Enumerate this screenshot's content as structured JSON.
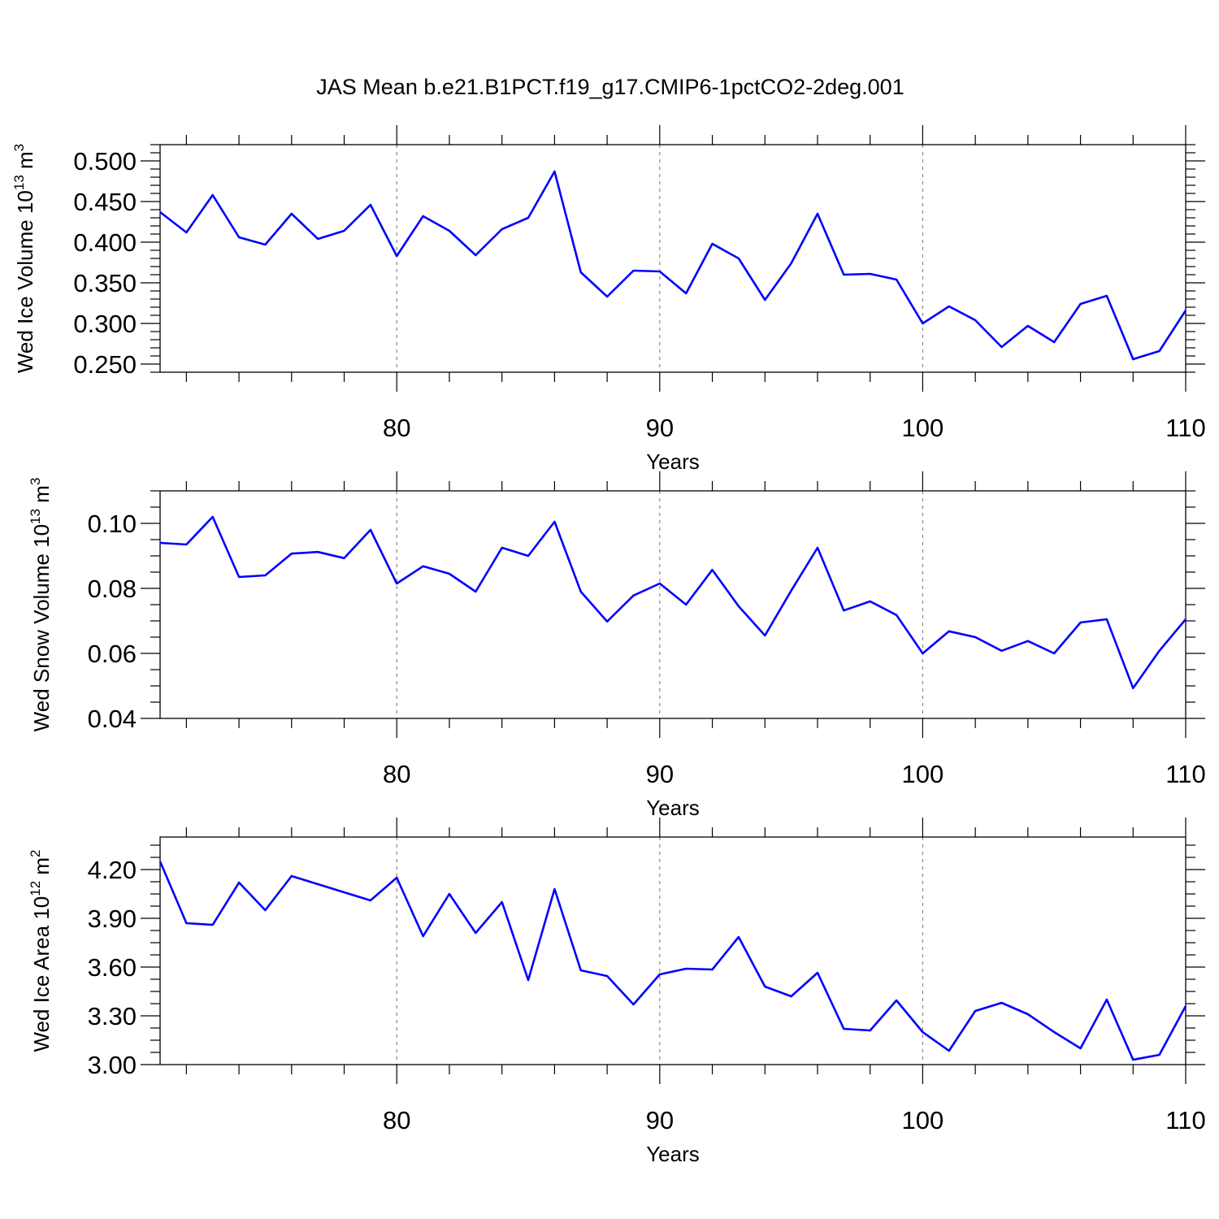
{
  "title": "JAS Mean b.e21.B1PCT.f19_g17.CMIP6-1pctCO2-2deg.001",
  "colors": {
    "line": "#0000ff",
    "axis": "#000000",
    "grid": "#888888"
  },
  "chart_data": [
    {
      "type": "line",
      "xlabel": "Years",
      "ylabel": {
        "text": "Wed Ice Volume 10",
        "exp": "13",
        "unit": " m",
        "unit_exp": "3"
      },
      "xlim": [
        71,
        110
      ],
      "ylim": [
        0.24,
        0.52
      ],
      "xticks": [
        80,
        90,
        100,
        110
      ],
      "xtick_labels": [
        "80",
        "90",
        "100",
        "110"
      ],
      "yticks": [
        0.25,
        0.3,
        0.35,
        0.4,
        0.45,
        0.5
      ],
      "ytick_labels": [
        "0.250",
        "0.300",
        "0.350",
        "0.400",
        "0.450",
        "0.500"
      ],
      "yminor_step": 0.01,
      "grid_x": [
        80,
        90,
        100
      ],
      "x": [
        71,
        72,
        73,
        74,
        75,
        76,
        77,
        78,
        79,
        80,
        81,
        82,
        83,
        84,
        85,
        86,
        87,
        88,
        89,
        90,
        91,
        92,
        93,
        94,
        95,
        96,
        97,
        98,
        99,
        100,
        101,
        102,
        103,
        104,
        105,
        106,
        107,
        108,
        109,
        110
      ],
      "values": [
        0.437,
        0.412,
        0.458,
        0.406,
        0.397,
        0.435,
        0.404,
        0.414,
        0.446,
        0.383,
        0.432,
        0.414,
        0.384,
        0.416,
        0.43,
        0.487,
        0.363,
        0.333,
        0.365,
        0.364,
        0.337,
        0.398,
        0.38,
        0.329,
        0.374,
        0.435,
        0.36,
        0.361,
        0.354,
        0.3,
        0.321,
        0.304,
        0.271,
        0.297,
        0.277,
        0.324,
        0.334,
        0.256,
        0.266,
        0.316
      ]
    },
    {
      "type": "line",
      "xlabel": "Years",
      "ylabel": {
        "text": "Wed Snow Volume 10",
        "exp": "13",
        "unit": " m",
        "unit_exp": "3"
      },
      "xlim": [
        71,
        110
      ],
      "ylim": [
        0.04,
        0.11
      ],
      "xticks": [
        80,
        90,
        100,
        110
      ],
      "xtick_labels": [
        "80",
        "90",
        "100",
        "110"
      ],
      "yticks": [
        0.04,
        0.06,
        0.08,
        0.1
      ],
      "ytick_labels": [
        "0.04",
        "0.06",
        "0.08",
        "0.10"
      ],
      "yminor_step": 0.005,
      "grid_x": [
        80,
        90,
        100
      ],
      "x": [
        71,
        72,
        73,
        74,
        75,
        76,
        77,
        78,
        79,
        80,
        81,
        82,
        83,
        84,
        85,
        86,
        87,
        88,
        89,
        90,
        91,
        92,
        93,
        94,
        95,
        96,
        97,
        98,
        99,
        100,
        101,
        102,
        103,
        104,
        105,
        106,
        107,
        108,
        109,
        110
      ],
      "values": [
        0.094,
        0.0935,
        0.102,
        0.0835,
        0.084,
        0.0907,
        0.0912,
        0.0893,
        0.098,
        0.0815,
        0.0868,
        0.0845,
        0.079,
        0.0925,
        0.09,
        0.1005,
        0.079,
        0.0698,
        0.0778,
        0.0815,
        0.075,
        0.0857,
        0.0745,
        0.0655,
        0.0793,
        0.0925,
        0.0732,
        0.076,
        0.0718,
        0.06,
        0.0668,
        0.065,
        0.0608,
        0.0638,
        0.06,
        0.0695,
        0.0705,
        0.0493,
        0.0608,
        0.0705
      ]
    },
    {
      "type": "line",
      "xlabel": "Years",
      "ylabel": {
        "text": "Wed Ice Area 10",
        "exp": "12",
        "unit": " m",
        "unit_exp": "2"
      },
      "xlim": [
        71,
        110
      ],
      "ylim": [
        3.0,
        4.4
      ],
      "xticks": [
        80,
        90,
        100,
        110
      ],
      "xtick_labels": [
        "80",
        "90",
        "100",
        "110"
      ],
      "yticks": [
        3.0,
        3.3,
        3.6,
        3.9,
        4.2
      ],
      "ytick_labels": [
        "3.00",
        "3.30",
        "3.60",
        "3.90",
        "4.20"
      ],
      "yminor_step": 0.075,
      "grid_x": [
        80,
        90,
        100
      ],
      "x": [
        71,
        72,
        73,
        74,
        75,
        76,
        77,
        78,
        79,
        80,
        81,
        82,
        83,
        84,
        85,
        86,
        87,
        88,
        89,
        90,
        91,
        92,
        93,
        94,
        95,
        96,
        97,
        98,
        99,
        100,
        101,
        102,
        103,
        104,
        105,
        106,
        107,
        108,
        109,
        110
      ],
      "values": [
        4.25,
        3.87,
        3.86,
        4.12,
        3.95,
        4.16,
        4.11,
        4.06,
        4.01,
        4.15,
        3.79,
        4.05,
        3.81,
        4.0,
        3.52,
        4.08,
        3.58,
        3.545,
        3.37,
        3.555,
        3.59,
        3.585,
        3.785,
        3.48,
        3.42,
        3.565,
        3.22,
        3.21,
        3.395,
        3.2,
        3.085,
        3.33,
        3.38,
        3.31,
        3.2,
        3.1,
        3.4,
        3.03,
        3.06,
        3.36
      ]
    }
  ]
}
